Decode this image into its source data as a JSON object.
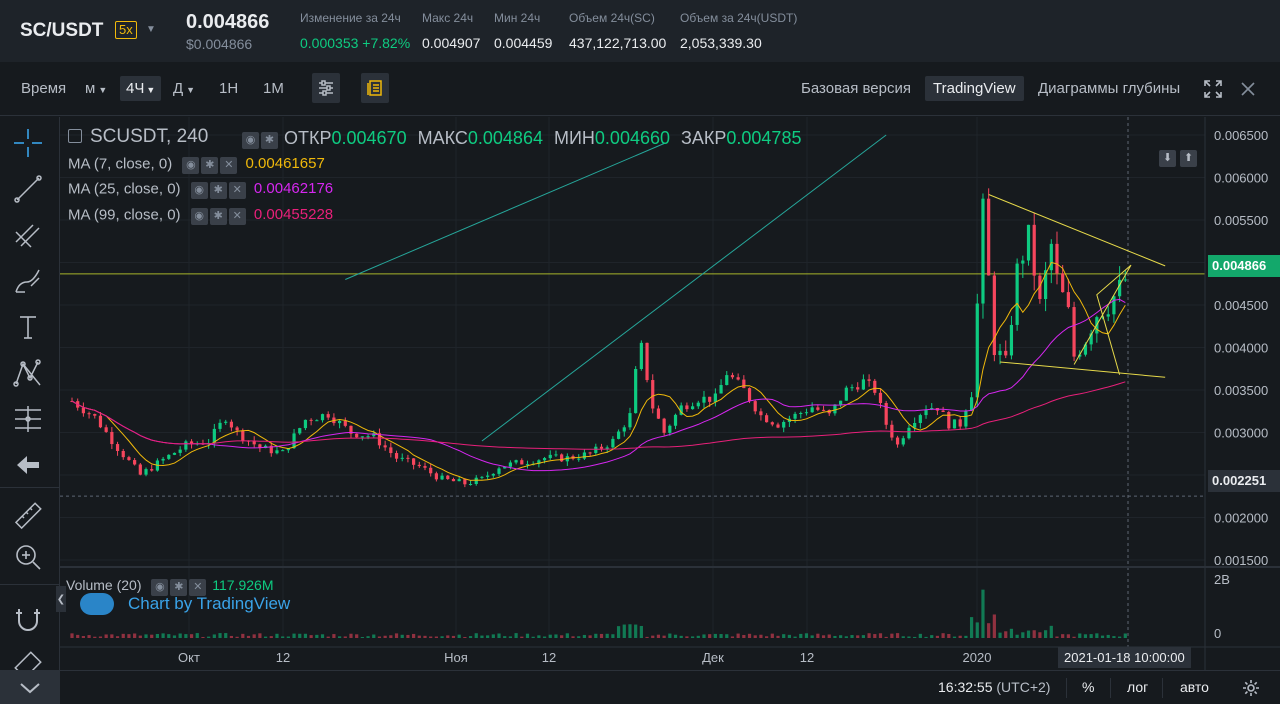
{
  "ticker": {
    "pair": "SC/USDT",
    "leverage": "5x",
    "last_price": "0.004866",
    "last_price_usd": "$0.004866",
    "stats": [
      {
        "label": "Изменение за 24ч",
        "value": "0.000353 +7.82%",
        "color": "#0ecb81"
      },
      {
        "label": "Макс 24ч",
        "value": "0.004907"
      },
      {
        "label": "Мин 24ч",
        "value": "0.004459"
      },
      {
        "label": "Объем 24ч(SC)",
        "value": "437,122,713.00"
      },
      {
        "label": "Объем за 24ч(USDT)",
        "value": "2,053,339.30"
      }
    ]
  },
  "toolbar": {
    "time_label": "Время",
    "intervals": [
      "м",
      "4Ч",
      "Д",
      "1Н",
      "1М"
    ],
    "active_interval": "4Ч",
    "views": [
      "Базовая версия",
      "TradingView",
      "Диаграммы глубины"
    ],
    "active_view": "TradingView"
  },
  "legend": {
    "symbol": "SCUSDT, 240",
    "open_label": "ОТКР",
    "open": "0.004670",
    "high_label": "МАКС",
    "high": "0.004864",
    "low_label": "МИН",
    "low": "0.004660",
    "close_label": "ЗАКР",
    "close": "0.004785",
    "ma": [
      {
        "label": "MA (7, close, 0)",
        "value": "0.00461657",
        "color": "#f0b90b"
      },
      {
        "label": "MA (25, close, 0)",
        "value": "0.00462176",
        "color": "#d627f0"
      },
      {
        "label": "MA (99, close, 0)",
        "value": "0.00455228",
        "color": "#e8207a"
      }
    ],
    "volume_label": "Volume (20)",
    "volume_value": "117.926M",
    "brand": "Chart by TradingView"
  },
  "status": {
    "clock": "16:32:55",
    "tz": "(UTC+2)",
    "pct": "%",
    "log": "лог",
    "auto": "авто"
  },
  "chart_data": {
    "type": "candlestick",
    "symbol": "SCUSDT",
    "interval": "240",
    "current_price": 0.004866,
    "horizontal_levels": [
      0.004866,
      0.002251
    ],
    "price_axis": {
      "ticks": [
        0.0065,
        0.006,
        0.0055,
        0.005,
        0.0045,
        0.004,
        0.0035,
        0.003,
        0.0025,
        0.002,
        0.0015
      ],
      "tick_labels": [
        "0.006500",
        "0.006000",
        "0.005500",
        "0.005000",
        "0.004500",
        "0.004000",
        "0.003500",
        "0.003000",
        "0.002500",
        "0.002000",
        "0.001500"
      ],
      "tagged": [
        "0.004866",
        "0.002251"
      ]
    },
    "volume_axis": {
      "ticks": [
        "2B",
        "0"
      ]
    },
    "time_axis": {
      "labels": [
        "Окт",
        "12",
        "Ноя",
        "12",
        "Дек",
        "12",
        "2020"
      ],
      "crosshair_label": "2021-01-18 10:00:00"
    },
    "price_anchors": [
      {
        "t": 0,
        "p": 0.00337
      },
      {
        "t": 4,
        "p": 0.00318
      },
      {
        "t": 8,
        "p": 0.00282
      },
      {
        "t": 12,
        "p": 0.0025
      },
      {
        "t": 16,
        "p": 0.00268
      },
      {
        "t": 20,
        "p": 0.00285
      },
      {
        "t": 24,
        "p": 0.0029
      },
      {
        "t": 27,
        "p": 0.00318
      },
      {
        "t": 29,
        "p": 0.003
      },
      {
        "t": 33,
        "p": 0.00282
      },
      {
        "t": 37,
        "p": 0.00276
      },
      {
        "t": 41,
        "p": 0.00315
      },
      {
        "t": 45,
        "p": 0.00322
      },
      {
        "t": 49,
        "p": 0.003
      },
      {
        "t": 53,
        "p": 0.00295
      },
      {
        "t": 57,
        "p": 0.0027
      },
      {
        "t": 61,
        "p": 0.0026
      },
      {
        "t": 65,
        "p": 0.00245
      },
      {
        "t": 69,
        "p": 0.0024
      },
      {
        "t": 72,
        "p": 0.00245
      },
      {
        "t": 75,
        "p": 0.0026
      },
      {
        "t": 79,
        "p": 0.00265
      },
      {
        "t": 83,
        "p": 0.0027
      },
      {
        "t": 87,
        "p": 0.0027
      },
      {
        "t": 91,
        "p": 0.00275
      },
      {
        "t": 95,
        "p": 0.0029
      },
      {
        "t": 98,
        "p": 0.0032
      },
      {
        "t": 99,
        "p": 0.0037
      },
      {
        "t": 100,
        "p": 0.004
      },
      {
        "t": 102,
        "p": 0.0033
      },
      {
        "t": 104,
        "p": 0.003
      },
      {
        "t": 107,
        "p": 0.0033
      },
      {
        "t": 110,
        "p": 0.0034
      },
      {
        "t": 113,
        "p": 0.0034
      },
      {
        "t": 115,
        "p": 0.0037
      },
      {
        "t": 118,
        "p": 0.0035
      },
      {
        "t": 121,
        "p": 0.0032
      },
      {
        "t": 124,
        "p": 0.0031
      },
      {
        "t": 127,
        "p": 0.0032
      },
      {
        "t": 130,
        "p": 0.0033
      },
      {
        "t": 133,
        "p": 0.0032
      },
      {
        "t": 136,
        "p": 0.0035
      },
      {
        "t": 139,
        "p": 0.0036
      },
      {
        "t": 141,
        "p": 0.0035
      },
      {
        "t": 143,
        "p": 0.0031
      },
      {
        "t": 145,
        "p": 0.00285
      },
      {
        "t": 147,
        "p": 0.0031
      },
      {
        "t": 150,
        "p": 0.0033
      },
      {
        "t": 152,
        "p": 0.0033
      },
      {
        "t": 154,
        "p": 0.0031
      },
      {
        "t": 156,
        "p": 0.0031
      },
      {
        "t": 158,
        "p": 0.0035
      },
      {
        "t": 159,
        "p": 0.0045
      },
      {
        "t": 160,
        "p": 0.0056
      },
      {
        "t": 161,
        "p": 0.0048
      },
      {
        "t": 162,
        "p": 0.004
      },
      {
        "t": 164,
        "p": 0.0038
      },
      {
        "t": 166,
        "p": 0.0049
      },
      {
        "t": 168,
        "p": 0.0053
      },
      {
        "t": 170,
        "p": 0.0045
      },
      {
        "t": 172,
        "p": 0.0052
      },
      {
        "t": 173,
        "p": 0.0048
      },
      {
        "t": 175,
        "p": 0.0044
      },
      {
        "t": 176,
        "p": 0.0039
      },
      {
        "t": 178,
        "p": 0.0041
      },
      {
        "t": 180,
        "p": 0.0044
      },
      {
        "t": 182,
        "p": 0.0045
      },
      {
        "t": 184,
        "p": 0.0047
      },
      {
        "t": 185,
        "p": 0.0048
      }
    ],
    "candles_count": 186,
    "annotations": [
      {
        "kind": "trend-line",
        "from": {
          "t": 48,
          "p": 0.0048
        },
        "to": {
          "t": 104,
          "p": 0.0064
        }
      },
      {
        "kind": "trend-line",
        "from": {
          "t": 72,
          "p": 0.0029
        },
        "to": {
          "t": 143,
          "p": 0.0065
        }
      },
      {
        "kind": "triangle-upper",
        "from": {
          "t": 161,
          "p": 0.0058
        },
        "to": {
          "t": 192,
          "p": 0.00496
        }
      },
      {
        "kind": "triangle-lower",
        "from": {
          "t": 163,
          "p": 0.00383
        },
        "to": {
          "t": 192,
          "p": 0.00365
        }
      },
      {
        "kind": "wedge",
        "points": [
          {
            "t": 176,
            "p": 0.0038
          },
          {
            "t": 186,
            "p": 0.00497
          },
          {
            "t": 180,
            "p": 0.00462
          },
          {
            "t": 184,
            "p": 0.00368
          }
        ]
      }
    ]
  }
}
